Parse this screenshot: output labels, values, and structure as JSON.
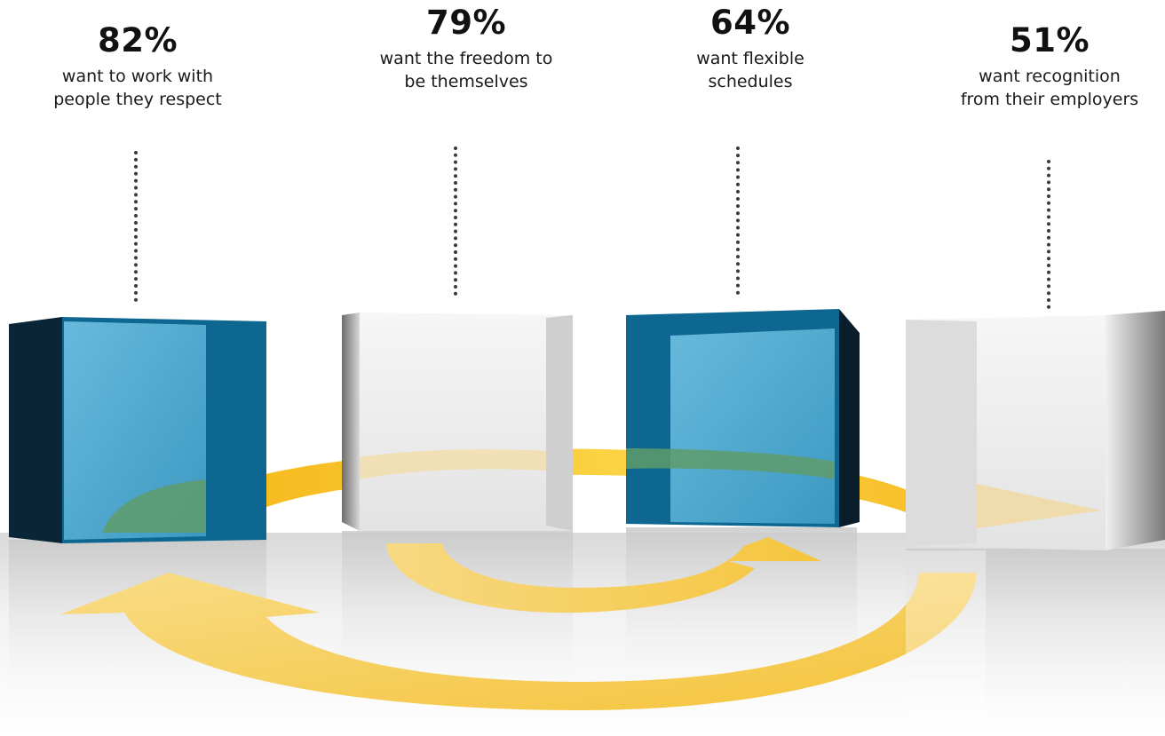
{
  "stats": [
    {
      "percent": "82%",
      "line1": "want to work with",
      "line2": "people they respect",
      "color": "#1a6f96"
    },
    {
      "percent": "79%",
      "line1": "want the freedom to",
      "line2": "be themselves",
      "color": "#e8e8e8"
    },
    {
      "percent": "64%",
      "line1": "want flexible",
      "line2": "schedules",
      "color": "#1a6f96"
    },
    {
      "percent": "51%",
      "line1": "want recognition",
      "line2": "from their employers",
      "color": "#e8e8e8"
    }
  ],
  "colors": {
    "blue_cube": "#0e6f99",
    "blue_face": "#58aed3",
    "dark_side": "#0a2537",
    "white_cube": "#efefef",
    "arrow_yellow": "#f7c52e"
  }
}
